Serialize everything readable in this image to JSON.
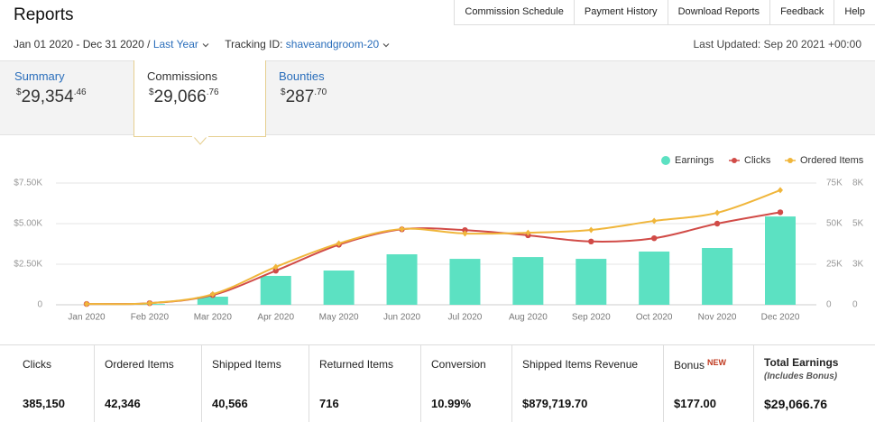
{
  "header": {
    "title": "Reports",
    "nav": [
      "Commission Schedule",
      "Payment History",
      "Download Reports",
      "Feedback",
      "Help"
    ],
    "date_range": "Jan 01 2020 - Dec 31 2020",
    "separator": "/",
    "period": "Last Year",
    "tracking_label": "Tracking ID:",
    "tracking_id": "shaveandgroom-20",
    "last_updated": "Last Updated: Sep 20 2021 +00:00"
  },
  "summary": [
    {
      "label": "Summary",
      "currency": "$",
      "whole": "29,354",
      "cents": ".46"
    },
    {
      "label": "Commissions",
      "currency": "$",
      "whole": "29,066",
      "cents": ".76"
    },
    {
      "label": "Bounties",
      "currency": "$",
      "whole": "287",
      "cents": ".70"
    }
  ],
  "chart_data": {
    "type": "combo",
    "categories": [
      "Jan 2020",
      "Feb 2020",
      "Mar 2020",
      "Apr 2020",
      "May 2020",
      "Jun 2020",
      "Jul 2020",
      "Aug 2020",
      "Sep 2020",
      "Oct 2020",
      "Nov 2020",
      "Dec 2020"
    ],
    "series": [
      {
        "name": "Earnings",
        "type": "bar",
        "color": "#5ce1c2",
        "axis": "y",
        "values": [
          0,
          50,
          500,
          1780,
          2110,
          3110,
          2830,
          2940,
          2830,
          3280,
          3500,
          5440
        ]
      },
      {
        "name": "Clicks",
        "type": "line",
        "color": "#d14b47",
        "axis": "y2",
        "values": [
          500,
          1000,
          6000,
          21000,
          37000,
          46500,
          46000,
          42800,
          39000,
          41000,
          50000,
          57000
        ]
      },
      {
        "name": "Ordered Items",
        "type": "line",
        "color": "#f0b63b",
        "axis": "y3",
        "values": [
          50,
          100,
          650,
          2330,
          3780,
          4670,
          4390,
          4440,
          4610,
          5170,
          5670,
          7060
        ]
      }
    ],
    "ylim": [
      0,
      7500
    ],
    "yticks": [
      0,
      {
        "value": 2500,
        "label": "$2.50K"
      },
      {
        "value": 5000,
        "label": "$5.00K"
      },
      {
        "value": 7500,
        "label": "$7.50K"
      }
    ],
    "y2lim": [
      0,
      75000
    ],
    "y2ticks": [
      0,
      {
        "value": 25000,
        "label": "25K"
      },
      {
        "value": 50000,
        "label": "50K"
      },
      {
        "value": 75000,
        "label": "75K"
      }
    ],
    "y3lim": [
      0,
      7500
    ],
    "y3ticks": [
      0,
      {
        "value": 2500,
        "label": "3K"
      },
      {
        "value": 5000,
        "label": "5K"
      },
      {
        "value": 7500,
        "label": "8K"
      }
    ],
    "grid": true,
    "legend": "top-right"
  },
  "stats": [
    {
      "label": "Clicks",
      "value": "385,150"
    },
    {
      "label": "Ordered Items",
      "value": "42,346"
    },
    {
      "label": "Shipped Items",
      "value": "40,566"
    },
    {
      "label": "Returned Items",
      "value": "716"
    },
    {
      "label": "Conversion",
      "value": "10.99%"
    },
    {
      "label": "Shipped Items Revenue",
      "value": "$879,719.70"
    },
    {
      "label": "Bonus",
      "badge": "NEW",
      "value": "$177.00"
    },
    {
      "label": "Total Earnings",
      "note": "(Includes Bonus)",
      "value": "$29,066.76"
    }
  ]
}
